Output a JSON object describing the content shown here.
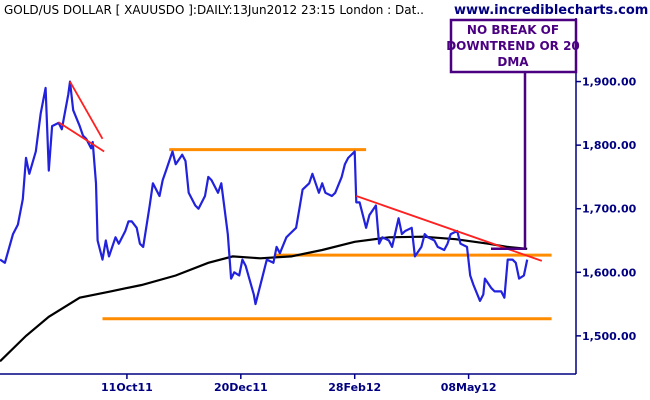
{
  "chart_data": {
    "type": "line",
    "title": "GOLD/US DOLLAR [ XAUUSDO ]:DAILY:13Jun2012 23:15 London : Dat..",
    "brand": "www.incrediblecharts.com",
    "annotation_lines": [
      "NO BREAK OF",
      "DOWNTREND OR 20",
      "DMA"
    ],
    "y_tick_labels": [
      "1,900.00",
      "1,800.00",
      "1,700.00",
      "1,600.00",
      "1,500.00"
    ],
    "y_ticks": [
      1900,
      1800,
      1700,
      1600,
      1500
    ],
    "ylim": [
      1440,
      2000
    ],
    "x_tick_labels": [
      "11Oct11",
      "20Dec11",
      "28Feb12",
      "08May12"
    ],
    "x_ticks": [
      "2011-10-11",
      "2011-12-20",
      "2012-02-28",
      "2012-05-08"
    ],
    "xlim": [
      "2011-07-25",
      "2012-07-13"
    ],
    "grid": false,
    "colors": {
      "price": "#2222dd",
      "ma": "#000000",
      "trendline": "#ff2020",
      "horizontal": "#ff8c00",
      "annotation": "#4b0082",
      "axis_text": "#000080"
    },
    "series": [
      {
        "values": [
          [
            "2011-07-25",
            1620
          ],
          [
            "2011-07-28",
            1615
          ],
          [
            "2011-08-02",
            1660
          ],
          [
            "2011-08-05",
            1675
          ],
          [
            "2011-08-08",
            1715
          ],
          [
            "2011-08-10",
            1780
          ],
          [
            "2011-08-12",
            1755
          ],
          [
            "2011-08-16",
            1790
          ],
          [
            "2011-08-19",
            1850
          ],
          [
            "2011-08-22",
            1890
          ],
          [
            "2011-08-24",
            1760
          ],
          [
            "2011-08-26",
            1830
          ],
          [
            "2011-08-30",
            1835
          ],
          [
            "2011-09-01",
            1825
          ],
          [
            "2011-09-05",
            1880
          ],
          [
            "2011-09-06",
            1900
          ],
          [
            "2011-09-08",
            1855
          ],
          [
            "2011-09-12",
            1830
          ],
          [
            "2011-09-14",
            1815
          ],
          [
            "2011-09-16",
            1810
          ],
          [
            "2011-09-19",
            1795
          ],
          [
            "2011-09-20",
            1805
          ],
          [
            "2011-09-22",
            1740
          ],
          [
            "2011-09-23",
            1650
          ],
          [
            "2011-09-26",
            1620
          ],
          [
            "2011-09-28",
            1650
          ],
          [
            "2011-09-30",
            1625
          ],
          [
            "2011-10-04",
            1655
          ],
          [
            "2011-10-06",
            1645
          ],
          [
            "2011-10-10",
            1665
          ],
          [
            "2011-10-12",
            1680
          ],
          [
            "2011-10-14",
            1680
          ],
          [
            "2011-10-17",
            1670
          ],
          [
            "2011-10-19",
            1645
          ],
          [
            "2011-10-21",
            1640
          ],
          [
            "2011-10-25",
            1705
          ],
          [
            "2011-10-27",
            1740
          ],
          [
            "2011-10-31",
            1720
          ],
          [
            "2011-11-02",
            1745
          ],
          [
            "2011-11-04",
            1760
          ],
          [
            "2011-11-08",
            1790
          ],
          [
            "2011-11-10",
            1770
          ],
          [
            "2011-11-14",
            1785
          ],
          [
            "2011-11-16",
            1775
          ],
          [
            "2011-11-18",
            1725
          ],
          [
            "2011-11-22",
            1705
          ],
          [
            "2011-11-24",
            1700
          ],
          [
            "2011-11-28",
            1720
          ],
          [
            "2011-11-30",
            1750
          ],
          [
            "2011-12-02",
            1745
          ],
          [
            "2011-12-06",
            1725
          ],
          [
            "2011-12-08",
            1740
          ],
          [
            "2011-12-12",
            1660
          ],
          [
            "2011-12-14",
            1590
          ],
          [
            "2011-12-16",
            1600
          ],
          [
            "2011-12-19",
            1595
          ],
          [
            "2011-12-21",
            1620
          ],
          [
            "2011-12-23",
            1610
          ],
          [
            "2011-12-28",
            1565
          ],
          [
            "2011-12-29",
            1550
          ],
          [
            "2012-01-03",
            1600
          ],
          [
            "2012-01-05",
            1620
          ],
          [
            "2012-01-09",
            1615
          ],
          [
            "2012-01-11",
            1640
          ],
          [
            "2012-01-13",
            1630
          ],
          [
            "2012-01-17",
            1655
          ],
          [
            "2012-01-19",
            1660
          ],
          [
            "2012-01-23",
            1670
          ],
          [
            "2012-01-25",
            1700
          ],
          [
            "2012-01-27",
            1730
          ],
          [
            "2012-01-31",
            1740
          ],
          [
            "2012-02-02",
            1755
          ],
          [
            "2012-02-06",
            1725
          ],
          [
            "2012-02-08",
            1740
          ],
          [
            "2012-02-10",
            1725
          ],
          [
            "2012-02-14",
            1720
          ],
          [
            "2012-02-16",
            1725
          ],
          [
            "2012-02-20",
            1750
          ],
          [
            "2012-02-22",
            1770
          ],
          [
            "2012-02-24",
            1780
          ],
          [
            "2012-02-28",
            1790
          ],
          [
            "2012-02-29",
            1710
          ],
          [
            "2012-03-02",
            1710
          ],
          [
            "2012-03-06",
            1670
          ],
          [
            "2012-03-08",
            1690
          ],
          [
            "2012-03-12",
            1705
          ],
          [
            "2012-03-14",
            1645
          ],
          [
            "2012-03-16",
            1655
          ],
          [
            "2012-03-20",
            1650
          ],
          [
            "2012-03-22",
            1640
          ],
          [
            "2012-03-26",
            1685
          ],
          [
            "2012-03-28",
            1660
          ],
          [
            "2012-03-30",
            1665
          ],
          [
            "2012-04-03",
            1670
          ],
          [
            "2012-04-05",
            1625
          ],
          [
            "2012-04-09",
            1640
          ],
          [
            "2012-04-11",
            1660
          ],
          [
            "2012-04-13",
            1655
          ],
          [
            "2012-04-17",
            1650
          ],
          [
            "2012-04-19",
            1640
          ],
          [
            "2012-04-23",
            1635
          ],
          [
            "2012-04-25",
            1645
          ],
          [
            "2012-04-27",
            1660
          ],
          [
            "2012-05-01",
            1665
          ],
          [
            "2012-05-03",
            1645
          ],
          [
            "2012-05-07",
            1640
          ],
          [
            "2012-05-09",
            1595
          ],
          [
            "2012-05-11",
            1580
          ],
          [
            "2012-05-15",
            1555
          ],
          [
            "2012-05-17",
            1565
          ],
          [
            "2012-05-18",
            1590
          ],
          [
            "2012-05-22",
            1575
          ],
          [
            "2012-05-24",
            1570
          ],
          [
            "2012-05-28",
            1570
          ],
          [
            "2012-05-30",
            1560
          ],
          [
            "2012-06-01",
            1620
          ],
          [
            "2012-06-04",
            1620
          ],
          [
            "2012-06-06",
            1615
          ],
          [
            "2012-06-08",
            1590
          ],
          [
            "2012-06-11",
            1595
          ],
          [
            "2012-06-13",
            1620
          ]
        ]
      },
      {
        "values": [
          [
            "2011-07-25",
            1460
          ],
          [
            "2011-08-10",
            1500
          ],
          [
            "2011-08-24",
            1530
          ],
          [
            "2011-09-12",
            1560
          ],
          [
            "2011-10-01",
            1570
          ],
          [
            "2011-10-20",
            1580
          ],
          [
            "2011-11-10",
            1595
          ],
          [
            "2011-11-30",
            1615
          ],
          [
            "2011-12-15",
            1625
          ],
          [
            "2012-01-01",
            1622
          ],
          [
            "2012-01-20",
            1625
          ],
          [
            "2012-02-08",
            1635
          ],
          [
            "2012-02-28",
            1648
          ],
          [
            "2012-03-20",
            1655
          ],
          [
            "2012-04-10",
            1656
          ],
          [
            "2012-04-30",
            1652
          ],
          [
            "2012-05-20",
            1645
          ],
          [
            "2012-06-01",
            1640
          ],
          [
            "2012-06-13",
            1637
          ]
        ]
      }
    ],
    "trendlines": [
      {
        "from": [
          "2011-09-06",
          1900
        ],
        "to": [
          "2011-09-26",
          1810
        ]
      },
      {
        "from": [
          "2011-08-30",
          1836
        ],
        "to": [
          "2011-09-27",
          1790
        ]
      },
      {
        "from": [
          "2012-02-29",
          1720
        ],
        "to": [
          "2012-06-22",
          1618
        ]
      }
    ],
    "horizontal_lines": [
      {
        "value": 1793,
        "from": "2011-11-06",
        "to": "2012-03-06"
      },
      {
        "value": 1627,
        "from": "2012-01-10",
        "to": "2012-06-28"
      },
      {
        "value": 1527,
        "from": "2011-09-26",
        "to": "2012-06-28"
      }
    ]
  }
}
